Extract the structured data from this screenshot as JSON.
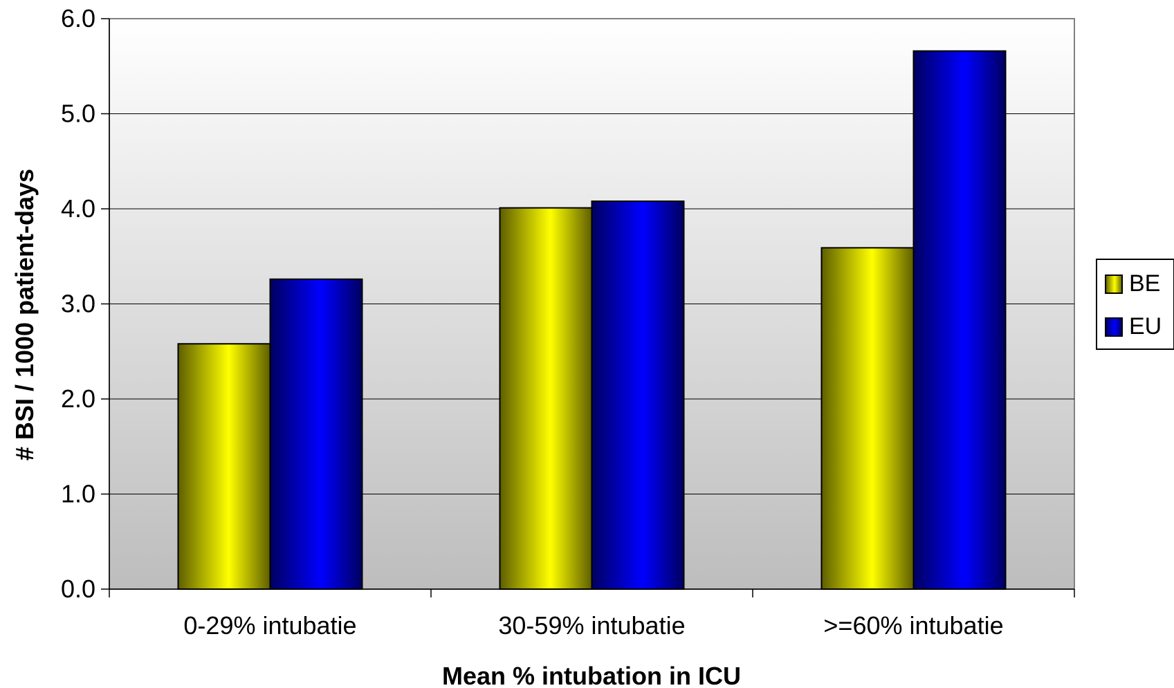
{
  "chart_data": {
    "type": "bar",
    "categories": [
      "0-29% intubatie",
      "30-59% intubatie",
      ">=60% intubatie"
    ],
    "series": [
      {
        "name": "BE",
        "values": [
          2.58,
          4.01,
          3.59
        ],
        "color_light": "#ffff00",
        "color_dark": "#5e5e00"
      },
      {
        "name": "EU",
        "values": [
          3.26,
          4.08,
          5.66
        ],
        "color_light": "#0000ff",
        "color_dark": "#000060"
      }
    ],
    "title": "",
    "xlabel": "Mean % intubation in ICU",
    "ylabel": "# BSI / 1000 patient-days",
    "ylim": [
      0,
      6
    ],
    "yticks": [
      "0.0",
      "1.0",
      "2.0",
      "3.0",
      "4.0",
      "5.0",
      "6.0"
    ],
    "grid": true,
    "legend": "right"
  }
}
